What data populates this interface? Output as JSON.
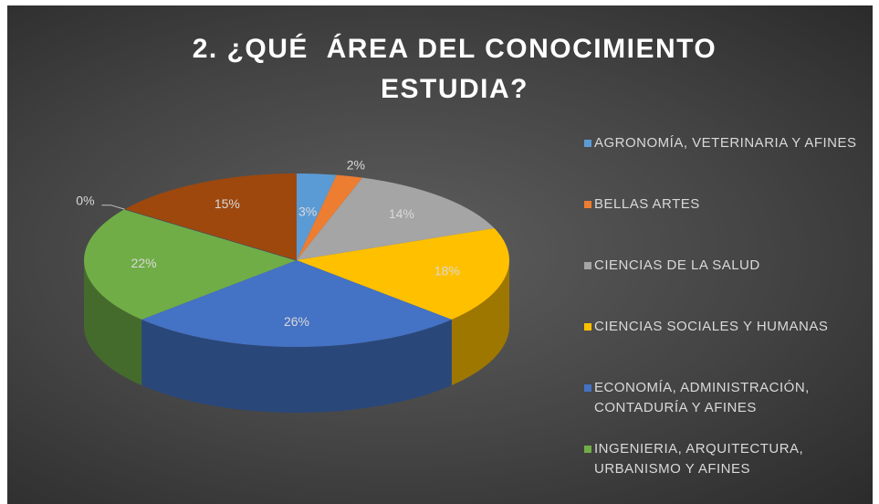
{
  "chart_data": {
    "type": "pie",
    "title": "2. ¿QUÉ  ÁREA DEL CONOCIMIENTO ESTUDIA?",
    "categories": [
      "AGRONOMÍA, VETERINARIA Y AFINES",
      "BELLAS ARTES",
      "CIENCIAS DE LA SALUD",
      "CIENCIAS SOCIALES Y HUMANAS",
      "ECONOMÍA, ADMINISTRACIÓN, CONTADURÍA Y AFINES",
      "INGENIERIA, ARQUITECTURA, URBANISMO Y AFINES",
      null,
      null
    ],
    "values": [
      3,
      2,
      14,
      18,
      26,
      22,
      0,
      15
    ],
    "value_labels": [
      "3%",
      "2%",
      "14%",
      "18%",
      "26%",
      "22%",
      "0%",
      "15%"
    ],
    "colors": [
      "#5b9bd5",
      "#ed7d31",
      "#a5a5a5",
      "#ffc000",
      "#4472c4",
      "#70ad47",
      "#264478",
      "#9e480e"
    ],
    "legend": "right"
  }
}
